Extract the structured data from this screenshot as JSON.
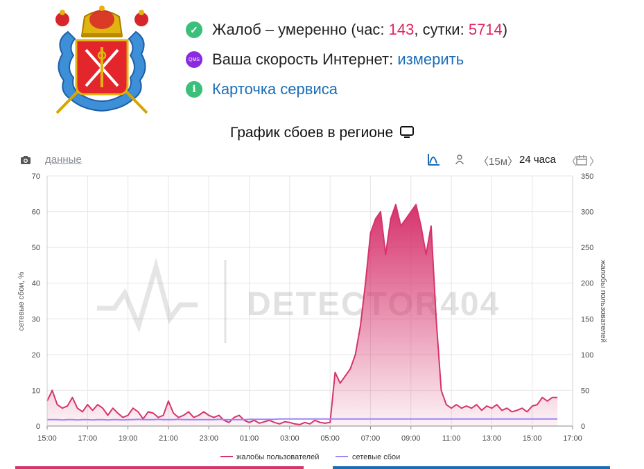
{
  "status": {
    "complaints_prefix": "Жалоб – умеренно (час: ",
    "complaints_hour": "143",
    "complaints_mid": ", сутки: ",
    "complaints_day": "5714",
    "complaints_suffix": ")",
    "speed_label": "Ваша скорость Интернет: ",
    "speed_link": "измерить",
    "speed_icon_text": "QMS",
    "service_card": "Карточка сервиса",
    "info_icon_text": "i",
    "check_icon_text": "✓"
  },
  "chart_title": "График сбоев в регионе",
  "toolbar": {
    "data_link": "данные",
    "interval": "15м",
    "period": "24 часа"
  },
  "watermark": "DETECTOR404",
  "colors": {
    "complaints": "#d6336c",
    "outages": "#9b87f5",
    "accent": "#e0245e",
    "link": "#1b6db8",
    "green": "#3bbf7a",
    "purple": "#8a2be2"
  },
  "chart_data": {
    "type": "area",
    "x": [
      "15:00",
      "15:15",
      "15:30",
      "15:45",
      "16:00",
      "16:15",
      "16:30",
      "16:45",
      "17:00",
      "17:15",
      "17:30",
      "17:45",
      "18:00",
      "18:15",
      "18:30",
      "18:45",
      "19:00",
      "19:15",
      "19:30",
      "19:45",
      "20:00",
      "20:15",
      "20:30",
      "20:45",
      "21:00",
      "21:15",
      "21:30",
      "21:45",
      "22:00",
      "22:15",
      "22:30",
      "22:45",
      "23:00",
      "23:15",
      "23:30",
      "23:45",
      "00:00",
      "00:15",
      "00:30",
      "00:45",
      "01:00",
      "01:15",
      "01:30",
      "01:45",
      "02:00",
      "02:15",
      "02:30",
      "02:45",
      "03:00",
      "03:15",
      "03:30",
      "03:45",
      "04:00",
      "04:15",
      "04:30",
      "04:45",
      "05:00",
      "05:15",
      "05:30",
      "05:45",
      "06:00",
      "06:15",
      "06:30",
      "06:45",
      "07:00",
      "07:15",
      "07:30",
      "07:45",
      "08:00",
      "08:15",
      "08:30",
      "08:45",
      "09:00",
      "09:15",
      "09:30",
      "09:45",
      "10:00",
      "10:15",
      "10:30",
      "10:45",
      "11:00",
      "11:15",
      "11:30",
      "11:45",
      "12:00",
      "12:15",
      "12:30",
      "12:45",
      "13:00",
      "13:15",
      "13:30",
      "13:45",
      "14:00",
      "14:15",
      "14:30",
      "14:45",
      "15:00",
      "15:15",
      "15:30",
      "15:45",
      "16:00",
      "16:15"
    ],
    "series": [
      {
        "name": "жалобы пользователей",
        "axis": "right",
        "values": [
          35,
          50,
          30,
          25,
          28,
          40,
          25,
          20,
          30,
          22,
          30,
          25,
          15,
          25,
          18,
          12,
          15,
          25,
          20,
          10,
          20,
          18,
          12,
          15,
          35,
          18,
          12,
          15,
          20,
          12,
          15,
          20,
          15,
          12,
          15,
          8,
          5,
          12,
          15,
          8,
          5,
          8,
          4,
          6,
          8,
          5,
          3,
          6,
          5,
          3,
          2,
          5,
          3,
          8,
          5,
          4,
          5,
          75,
          60,
          70,
          80,
          100,
          140,
          200,
          270,
          290,
          300,
          240,
          290,
          310,
          280,
          290,
          300,
          310,
          280,
          240,
          280,
          150,
          50,
          30,
          25,
          30,
          25,
          28,
          25,
          30,
          22,
          28,
          25,
          30,
          22,
          25,
          20,
          22,
          25,
          20,
          28,
          30,
          40,
          35,
          40,
          40
        ]
      },
      {
        "name": "сетевые сбои",
        "axis": "left",
        "values": [
          1.8,
          1.8,
          1.8,
          1.7,
          1.8,
          1.8,
          1.7,
          1.8,
          1.8,
          1.7,
          1.8,
          1.8,
          1.7,
          1.8,
          1.8,
          1.7,
          1.8,
          1.8,
          1.9,
          1.8,
          1.8,
          1.8,
          1.9,
          1.8,
          1.8,
          1.8,
          1.9,
          1.8,
          1.8,
          1.8,
          1.8,
          1.8,
          1.8,
          1.8,
          1.9,
          1.8,
          1.8,
          1.8,
          1.8,
          1.8,
          1.9,
          1.9,
          1.9,
          1.9,
          1.9,
          1.9,
          2.0,
          2.0,
          2.0,
          2.0,
          2.0,
          2.0,
          2.0,
          2.0,
          2.0,
          2.0,
          2.0,
          2.0,
          2.0,
          2.0,
          2.0,
          2.0,
          2.0,
          2.0,
          2.0,
          2.0,
          2.0,
          2.0,
          2.0,
          2.0,
          2.0,
          2.0,
          2.0,
          2.0,
          2.0,
          2.0,
          2.0,
          2.0,
          2.0,
          2.0,
          2.0,
          2.0,
          2.0,
          2.0,
          2.0,
          2.0,
          2.0,
          2.0,
          2.0,
          2.0,
          2.0,
          2.0,
          2.0,
          2.0,
          2.0,
          2.0,
          2.0,
          2.0,
          2.0,
          2.0,
          2.0,
          2.0
        ]
      }
    ],
    "x_ticks": [
      "15:00",
      "17:00",
      "19:00",
      "21:00",
      "23:00",
      "01:00",
      "03:00",
      "05:00",
      "07:00",
      "09:00",
      "11:00",
      "13:00",
      "15:00",
      "17:00"
    ],
    "y_left": {
      "label": "сетевые сбои, %",
      "ticks": [
        "0",
        "10",
        "20",
        "30",
        "40",
        "50",
        "60",
        "70"
      ],
      "range": [
        0,
        70
      ]
    },
    "y_right": {
      "label": "жалобы пользователей",
      "ticks": [
        "0",
        "50",
        "100",
        "150",
        "200",
        "250",
        "300",
        "350"
      ],
      "range": [
        0,
        350
      ]
    },
    "legend": [
      "жалобы пользователей",
      "сетевые сбои"
    ],
    "legend_position": "bottom",
    "grid": true
  }
}
